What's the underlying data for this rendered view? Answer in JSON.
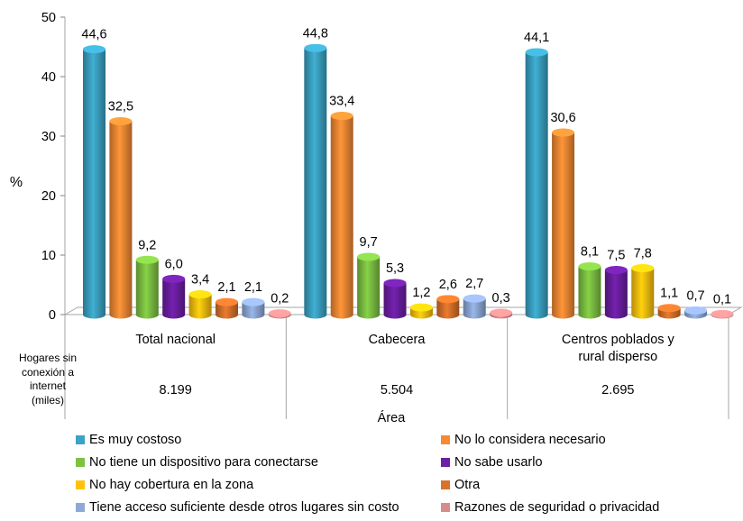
{
  "chart_data": {
    "type": "bar",
    "ylabel": "%",
    "xlabel": "Área",
    "ylim": [
      0,
      50
    ],
    "yticks": [
      "0",
      "10",
      "20",
      "30",
      "40",
      "50"
    ],
    "categories": [
      "Total nacional",
      "Cabecera",
      "Centros poblados y rural disperso"
    ],
    "category_labels": [
      [
        "Total nacional"
      ],
      [
        "Cabecera"
      ],
      [
        "Centros poblados y",
        "rural disperso"
      ]
    ],
    "series": [
      {
        "name": "Es muy costoso",
        "color": "#3BA3C4",
        "values": [
          44.6,
          44.8,
          44.1
        ],
        "labels": [
          "44,6",
          "44,8",
          "44,1"
        ]
      },
      {
        "name": "No lo considera necesario",
        "color": "#F58A34",
        "values": [
          32.5,
          33.4,
          30.6
        ],
        "labels": [
          "32,5",
          "33,4",
          "30,6"
        ]
      },
      {
        "name": "No tiene un dispositivo para conectarse",
        "color": "#7DC243",
        "values": [
          9.2,
          9.7,
          8.1
        ],
        "labels": [
          "9,2",
          "9,7",
          "8,1"
        ]
      },
      {
        "name": "No sabe usarlo",
        "color": "#6C1FA3",
        "values": [
          6.0,
          5.3,
          7.5
        ],
        "labels": [
          "6,0",
          "5,3",
          "7,5"
        ]
      },
      {
        "name": "No hay cobertura en la zona",
        "color": "#FFC20E",
        "values": [
          3.4,
          1.2,
          7.8
        ],
        "labels": [
          "3,4",
          "1,2",
          "7,8"
        ]
      },
      {
        "name": "Otra",
        "color": "#D9722B",
        "values": [
          2.1,
          2.6,
          1.1
        ],
        "labels": [
          "2,1",
          "2,6",
          "1,1"
        ]
      },
      {
        "name": "Tiene acceso suficiente desde otros lugares sin costo",
        "color": "#8EA9D8",
        "values": [
          2.1,
          2.7,
          0.7
        ],
        "labels": [
          "2,1",
          "2,7",
          "0,7"
        ]
      },
      {
        "name": "Razones de seguridad o privacidad",
        "color": "#D98A8A",
        "values": [
          0.2,
          0.3,
          0.1
        ],
        "labels": [
          "0,2",
          "0,3",
          "0,1"
        ]
      }
    ],
    "row_label": [
      "Hogares sin",
      "conexión a",
      "internet",
      "(miles)"
    ],
    "row_values": [
      "8.199",
      "5.504",
      "2.695"
    ],
    "legend_position": "bottom",
    "grid": false
  }
}
